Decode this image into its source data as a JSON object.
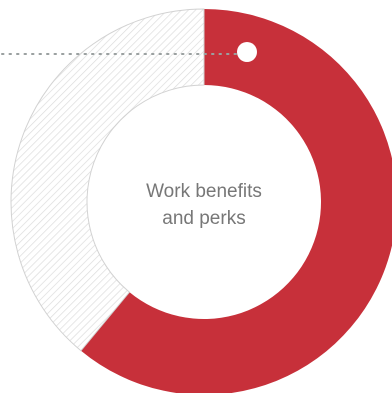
{
  "chart_data": {
    "type": "pie",
    "style": "donut",
    "title": "",
    "center_label_lines": [
      "Work benefits",
      "and perks"
    ],
    "slices": [
      {
        "label": "",
        "value": 61,
        "color": "#c7303a",
        "pattern": "solid"
      },
      {
        "label": "",
        "value": 39,
        "color": "#e8e8e8",
        "pattern": "hatched"
      }
    ],
    "start_angle_deg": 0,
    "direction": "clockwise",
    "leader_line": {
      "style": "dotted",
      "color": "#9aa0a0",
      "marker_color": "#ffffff"
    }
  }
}
